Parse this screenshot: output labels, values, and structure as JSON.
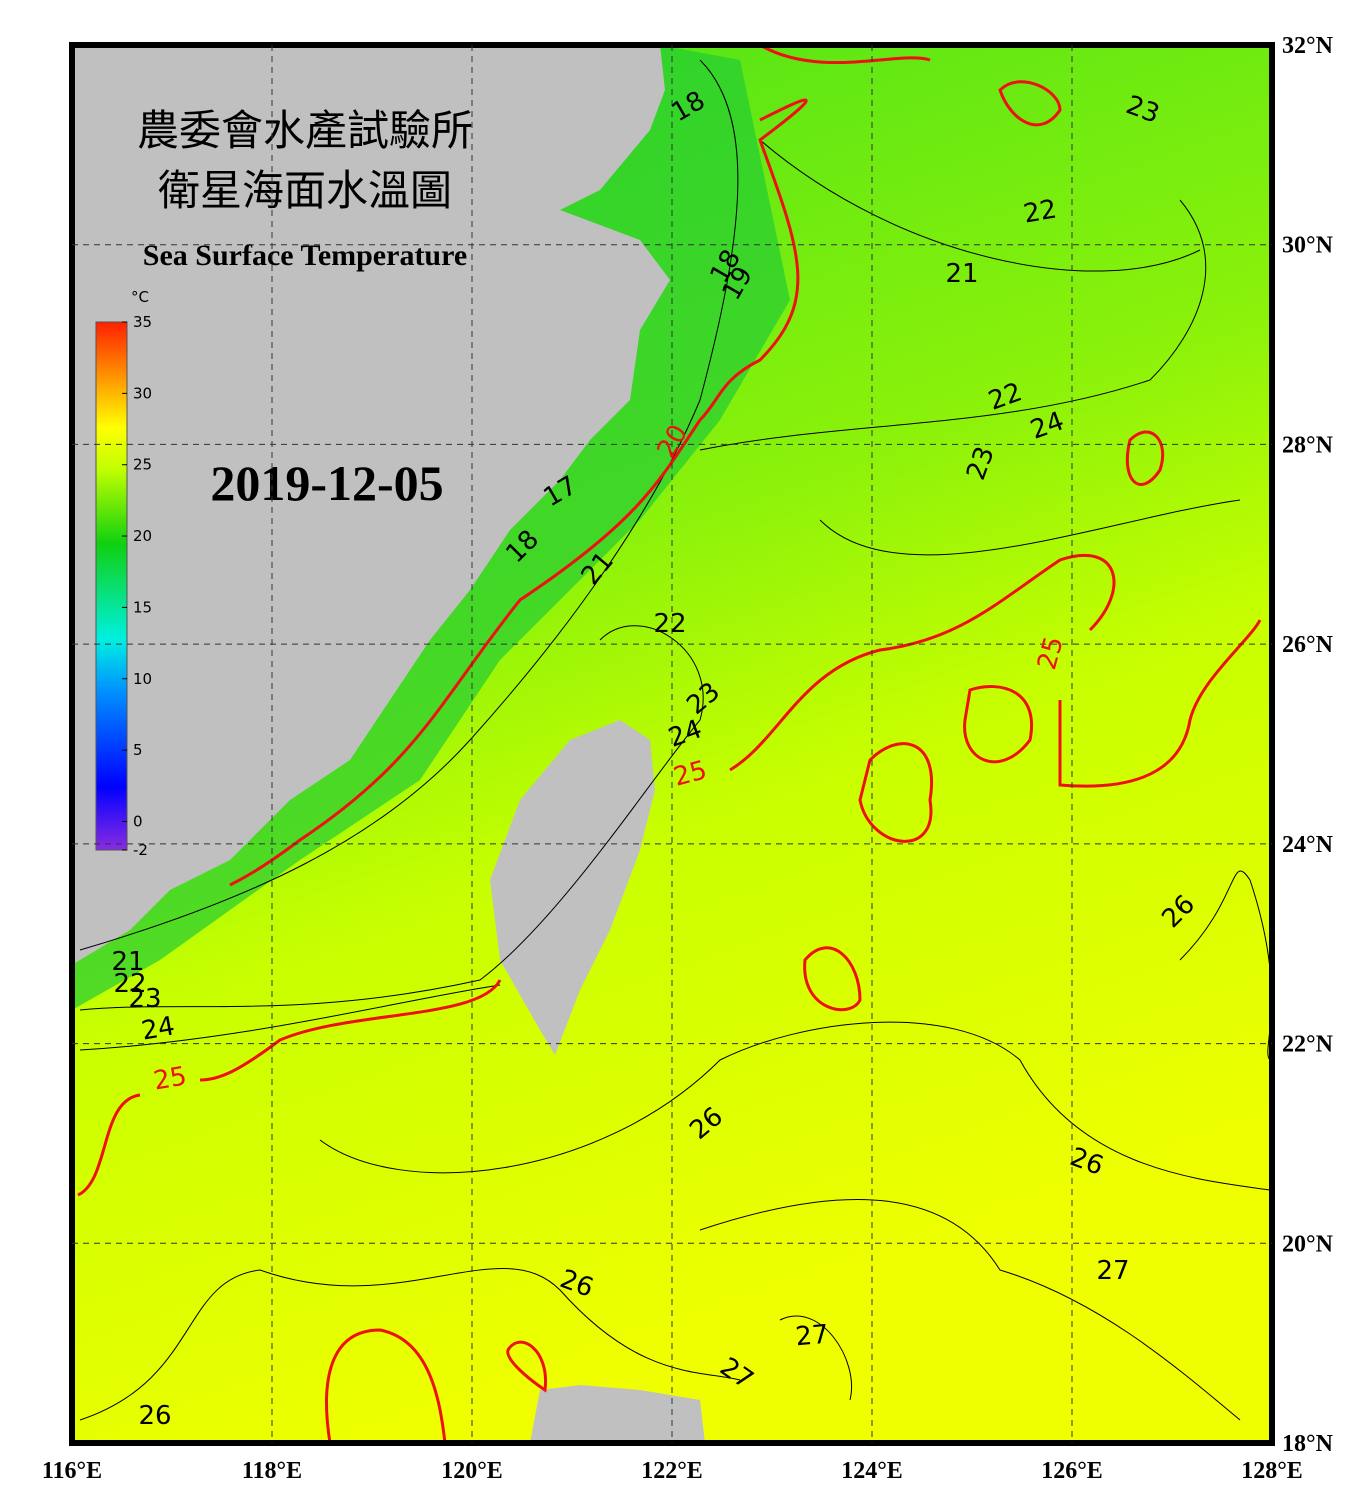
{
  "title": "農委會水產試驗所",
  "subtitle": "衛星海面水溫圖",
  "english_title": "Sea Surface Temperature",
  "date": "2019-12-05",
  "colorbar": {
    "unit": "°C",
    "range": [
      -2,
      35
    ],
    "ticks": [
      35,
      30,
      25,
      20,
      15,
      10,
      5,
      0,
      -2
    ]
  },
  "lon_ticks": [
    {
      "value": 116,
      "label": "116°E"
    },
    {
      "value": 118,
      "label": "118°E"
    },
    {
      "value": 120,
      "label": "120°E"
    },
    {
      "value": 122,
      "label": "122°E"
    },
    {
      "value": 124,
      "label": "124°E"
    },
    {
      "value": 126,
      "label": "126°E"
    },
    {
      "value": 128,
      "label": "128°E"
    }
  ],
  "lat_ticks": [
    {
      "value": 32,
      "label": "32°N"
    },
    {
      "value": 30,
      "label": "30°N"
    },
    {
      "value": 28,
      "label": "28°N"
    },
    {
      "value": 26,
      "label": "26°N"
    },
    {
      "value": 24,
      "label": "24°N"
    },
    {
      "value": 22,
      "label": "22°N"
    },
    {
      "value": 20,
      "label": "20°N"
    },
    {
      "value": 18,
      "label": "18°N"
    }
  ],
  "contour_labels": [
    18,
    18,
    19,
    23,
    22,
    21,
    22,
    24,
    23,
    20,
    17,
    18,
    21,
    22,
    25,
    23,
    24,
    25,
    26,
    21,
    22,
    23,
    24,
    25,
    26,
    26,
    27,
    26,
    27,
    27,
    26
  ]
}
